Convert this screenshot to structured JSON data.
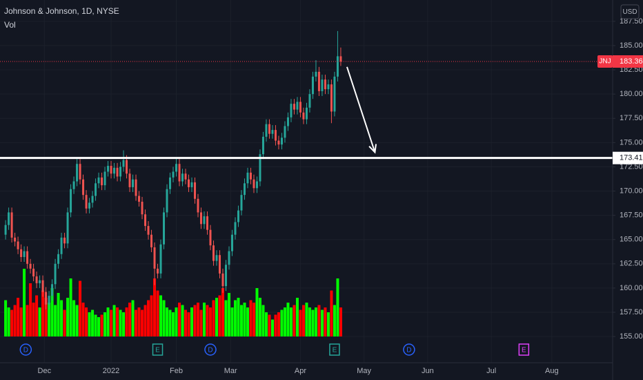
{
  "chart_data": {
    "type": "candlestick",
    "title": "Johnson & Johnson, 1D, NYSE",
    "volume_title": "Vol",
    "currency": "USD",
    "up_color": "#26a69a",
    "down_color": "#ef5350",
    "volume_up_color": "#00ff00",
    "volume_down_color": "#ff0000",
    "xlim": [
      -1.8,
      195.6
    ],
    "ylim": [
      152.3,
      189.7
    ],
    "volume_ylim": [
      0,
      25
    ],
    "grid": true,
    "xticks": [
      {
        "value": 12.5,
        "label": "Dec"
      },
      {
        "value": 34,
        "label": "2022"
      },
      {
        "value": 55,
        "label": "Feb"
      },
      {
        "value": 72.5,
        "label": "Mar"
      },
      {
        "value": 95,
        "label": "Apr"
      },
      {
        "value": 115.5,
        "label": "May"
      },
      {
        "value": 136,
        "label": "Jun"
      },
      {
        "value": 156.5,
        "label": "Jul"
      },
      {
        "value": 176,
        "label": "Aug"
      }
    ],
    "yticks": [
      {
        "value": 155,
        "label": "155.00"
      },
      {
        "value": 157.5,
        "label": "157.50"
      },
      {
        "value": 160,
        "label": "160.00"
      },
      {
        "value": 162.5,
        "label": "162.50"
      },
      {
        "value": 165,
        "label": "165.00"
      },
      {
        "value": 167.5,
        "label": "167.50"
      },
      {
        "value": 170,
        "label": "170.00"
      },
      {
        "value": 172.5,
        "label": "172.50"
      },
      {
        "value": 175,
        "label": "175.00"
      },
      {
        "value": 177.5,
        "label": "177.50"
      },
      {
        "value": 180,
        "label": "180.00"
      },
      {
        "value": 182.5,
        "label": "182.50"
      },
      {
        "value": 185,
        "label": "185.00"
      },
      {
        "value": 187.5,
        "label": "187.50"
      }
    ],
    "open": [
      165.5,
      166.5,
      167.8,
      165.2,
      164.8,
      164.0,
      163.2,
      163.8,
      162.5,
      162.0,
      161.2,
      160.5,
      160.8,
      159.6,
      158.3,
      159.2,
      160.4,
      162.5,
      163.5,
      165.2,
      164.6,
      167.8,
      170.2,
      171.0,
      172.8,
      171.2,
      169.6,
      168.2,
      168.8,
      169.5,
      170.8,
      171.4,
      170.6,
      172.0,
      172.6,
      171.8,
      172.4,
      171.5,
      172.5,
      173.2,
      171.8,
      170.4,
      171.2,
      169.5,
      168.9,
      167.6,
      166.4,
      165.5,
      164.2,
      162.0,
      161.5,
      164.5,
      167.8,
      170.2,
      171.4,
      172.0,
      172.8,
      171.0,
      171.8,
      171.2,
      170.4,
      170.9,
      169.2,
      167.8,
      166.6,
      167.4,
      166.0,
      164.4,
      162.8,
      163.4,
      161.5,
      160.2,
      162.4,
      163.8,
      165.5,
      166.8,
      168.0,
      169.6,
      170.8,
      171.9,
      171.2,
      170.3,
      171.0,
      173.8,
      175.6,
      176.9,
      175.9,
      176.3,
      175.2,
      174.8,
      175.5,
      176.7,
      177.6,
      179.0,
      178.4,
      179.2,
      178.1,
      177.4,
      178.6,
      180.0,
      181.8,
      182.3,
      180.3,
      181.5,
      180.5,
      181.0,
      178.2,
      181.8,
      183.9
    ],
    "high": [
      167.0,
      168.3,
      168.3,
      165.7,
      165.3,
      164.5,
      164.3,
      164.3,
      163.0,
      162.5,
      161.7,
      161.3,
      161.3,
      160.1,
      159.7,
      160.9,
      163.0,
      164.0,
      165.7,
      165.7,
      168.3,
      170.7,
      171.5,
      173.3,
      173.3,
      171.7,
      170.1,
      169.3,
      170.0,
      171.3,
      171.9,
      171.9,
      172.5,
      173.1,
      173.1,
      172.9,
      172.9,
      173.0,
      174.2,
      173.7,
      172.3,
      171.7,
      171.7,
      170.0,
      169.4,
      168.1,
      166.9,
      166.0,
      164.7,
      162.5,
      165.0,
      168.3,
      170.7,
      171.9,
      172.5,
      173.4,
      173.3,
      172.3,
      172.3,
      171.7,
      171.4,
      171.4,
      169.7,
      168.3,
      167.9,
      167.9,
      166.5,
      164.9,
      163.9,
      163.9,
      162.0,
      162.9,
      164.3,
      166.0,
      167.3,
      168.5,
      170.1,
      171.3,
      172.4,
      172.4,
      171.7,
      171.5,
      174.3,
      176.1,
      177.4,
      177.4,
      176.8,
      176.8,
      175.7,
      176.0,
      177.2,
      178.1,
      179.5,
      179.5,
      179.7,
      179.7,
      178.6,
      179.1,
      180.5,
      182.3,
      183.5,
      182.8,
      182.0,
      182.0,
      181.5,
      181.5,
      182.3,
      186.5,
      184.8
    ],
    "low": [
      165.0,
      166.0,
      164.7,
      164.3,
      163.5,
      162.7,
      162.7,
      162.0,
      161.5,
      160.7,
      160.0,
      160.0,
      159.1,
      157.8,
      157.8,
      158.7,
      159.9,
      162.0,
      163.0,
      164.1,
      164.1,
      167.3,
      169.7,
      170.5,
      170.7,
      169.1,
      167.7,
      167.7,
      168.3,
      169.0,
      170.3,
      170.1,
      170.1,
      171.5,
      171.3,
      171.3,
      171.0,
      171.0,
      172.0,
      171.3,
      169.9,
      169.9,
      169.0,
      168.4,
      167.1,
      165.9,
      165.0,
      163.7,
      160.3,
      161.0,
      161.0,
      164.0,
      167.3,
      169.7,
      170.9,
      171.5,
      170.5,
      170.5,
      170.7,
      169.9,
      169.9,
      168.7,
      167.3,
      166.1,
      166.1,
      165.5,
      163.9,
      162.3,
      162.3,
      161.0,
      159.5,
      159.7,
      161.9,
      163.3,
      165.0,
      166.3,
      167.5,
      169.1,
      170.3,
      170.7,
      169.8,
      169.8,
      170.5,
      173.3,
      175.1,
      175.4,
      175.4,
      174.7,
      174.3,
      174.3,
      175.0,
      176.2,
      177.1,
      177.9,
      177.9,
      177.6,
      176.9,
      176.9,
      178.1,
      179.5,
      181.3,
      179.8,
      179.8,
      180.0,
      180.0,
      177.0,
      177.7,
      181.3,
      182.9
    ],
    "close": [
      166.5,
      167.8,
      165.2,
      164.8,
      164.0,
      163.2,
      163.8,
      162.5,
      162.0,
      161.2,
      160.5,
      160.8,
      159.6,
      158.3,
      159.2,
      160.4,
      162.5,
      163.5,
      165.2,
      164.6,
      167.8,
      170.2,
      171.0,
      172.8,
      171.2,
      169.6,
      168.2,
      168.8,
      169.5,
      170.8,
      171.4,
      170.6,
      172.0,
      172.6,
      171.8,
      172.4,
      171.5,
      172.5,
      173.2,
      171.8,
      170.4,
      171.2,
      169.5,
      168.9,
      167.6,
      166.4,
      165.5,
      164.2,
      162.0,
      161.5,
      164.5,
      167.8,
      170.2,
      171.4,
      172.0,
      172.8,
      171.0,
      171.8,
      171.2,
      170.4,
      170.9,
      169.2,
      167.8,
      166.6,
      167.4,
      166.0,
      164.4,
      162.8,
      163.4,
      161.5,
      160.2,
      162.4,
      163.8,
      165.5,
      166.8,
      168.0,
      169.6,
      170.8,
      171.9,
      171.2,
      170.3,
      171.0,
      173.8,
      175.6,
      176.9,
      175.9,
      176.3,
      175.2,
      174.8,
      175.5,
      176.7,
      177.6,
      179.0,
      178.4,
      179.2,
      178.1,
      177.4,
      178.6,
      180.0,
      181.8,
      182.3,
      180.3,
      181.5,
      180.5,
      181.0,
      178.2,
      181.8,
      183.9,
      183.36
    ],
    "volume": [
      7.5,
      6.0,
      5.5,
      6.5,
      8.0,
      6.0,
      14.0,
      6.5,
      11.0,
      7.0,
      8.5,
      6.0,
      9.5,
      8.0,
      7.0,
      10.0,
      6.5,
      9.0,
      7.5,
      5.5,
      8.0,
      12.0,
      7.5,
      6.5,
      11.5,
      7.0,
      6.0,
      5.0,
      5.5,
      4.5,
      4.0,
      4.5,
      5.0,
      6.0,
      5.5,
      6.5,
      6.0,
      5.5,
      5.0,
      6.0,
      7.0,
      7.5,
      5.5,
      6.0,
      5.5,
      6.5,
      7.5,
      8.5,
      12.0,
      9.5,
      8.5,
      7.5,
      6.0,
      5.5,
      5.0,
      6.0,
      7.0,
      6.5,
      5.5,
      5.0,
      6.0,
      6.5,
      7.0,
      5.5,
      7.0,
      6.5,
      6.0,
      7.5,
      8.0,
      8.5,
      10.0,
      7.5,
      9.0,
      6.0,
      7.5,
      8.0,
      6.5,
      7.0,
      6.0,
      7.5,
      7.0,
      10.0,
      8.0,
      6.5,
      5.0,
      4.5,
      3.5,
      4.5,
      5.0,
      5.5,
      6.0,
      7.0,
      6.0,
      6.5,
      8.0,
      5.5,
      6.5,
      7.0,
      6.0,
      5.5,
      6.0,
      6.5,
      5.5,
      6.0,
      5.0,
      9.5,
      6.5,
      12.0,
      6.0
    ],
    "last_price": {
      "value": 183.36,
      "label": "183.36",
      "symbol": "JNJ",
      "color": "#f23645"
    },
    "hline": {
      "value": 173.41,
      "label": "173.41",
      "color": "#ffffff"
    },
    "arrow": {
      "x": [
        110,
        119
      ],
      "y": [
        182.8,
        174.0
      ],
      "color": "#ffffff"
    },
    "events": [
      {
        "x": 6.5,
        "label": "D",
        "color": "#2962ff"
      },
      {
        "x": 49,
        "label": "E",
        "color": "#26a69a"
      },
      {
        "x": 66,
        "label": "D",
        "color": "#2962ff"
      },
      {
        "x": 106,
        "label": "E",
        "color": "#26a69a"
      },
      {
        "x": 130,
        "label": "D",
        "color": "#2962ff"
      },
      {
        "x": 167,
        "label": "E",
        "color": "#e040fb"
      }
    ]
  }
}
